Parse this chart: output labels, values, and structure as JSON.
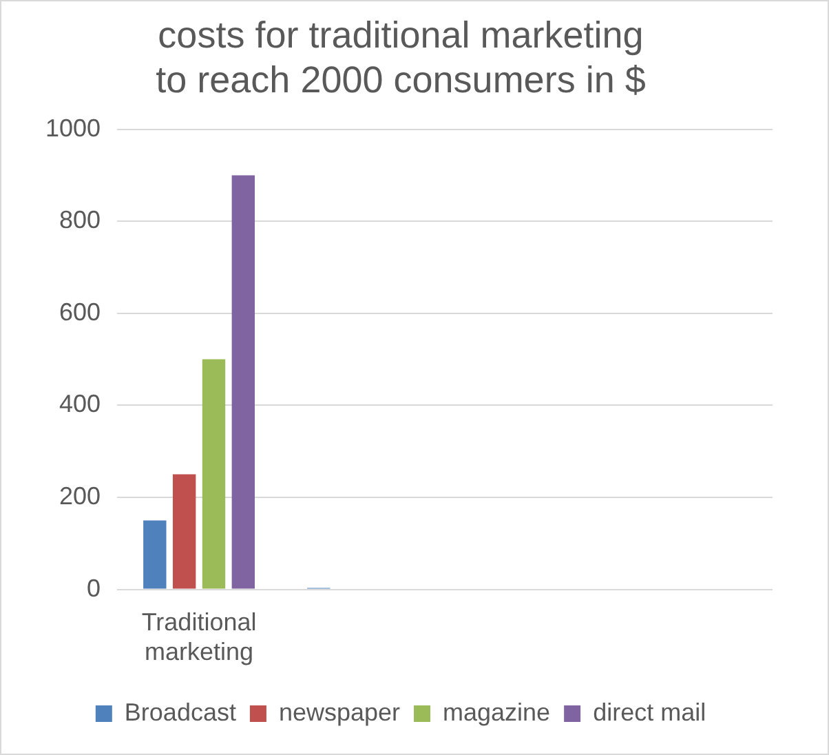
{
  "chart_data": {
    "type": "bar",
    "title": [
      "costs for traditional marketing",
      "to reach 2000 consumers in $"
    ],
    "categories": [
      [
        "Traditional",
        "marketing"
      ],
      null,
      null,
      null
    ],
    "series": [
      {
        "name": "Broadcast",
        "color": "#4f81bd",
        "values": [
          150,
          3,
          null,
          null
        ]
      },
      {
        "name": "newspaper",
        "color": "#c0504d",
        "values": [
          250,
          null,
          null,
          null
        ]
      },
      {
        "name": "magazine",
        "color": "#9bbb59",
        "values": [
          500,
          null,
          null,
          null
        ]
      },
      {
        "name": "direct mail",
        "color": "#8064a2",
        "values": [
          900,
          null,
          null,
          null
        ]
      }
    ],
    "ylim": [
      0,
      1000
    ],
    "yticks": [
      0,
      200,
      400,
      600,
      800,
      1000
    ],
    "grid": "y",
    "legend": "bottom"
  }
}
